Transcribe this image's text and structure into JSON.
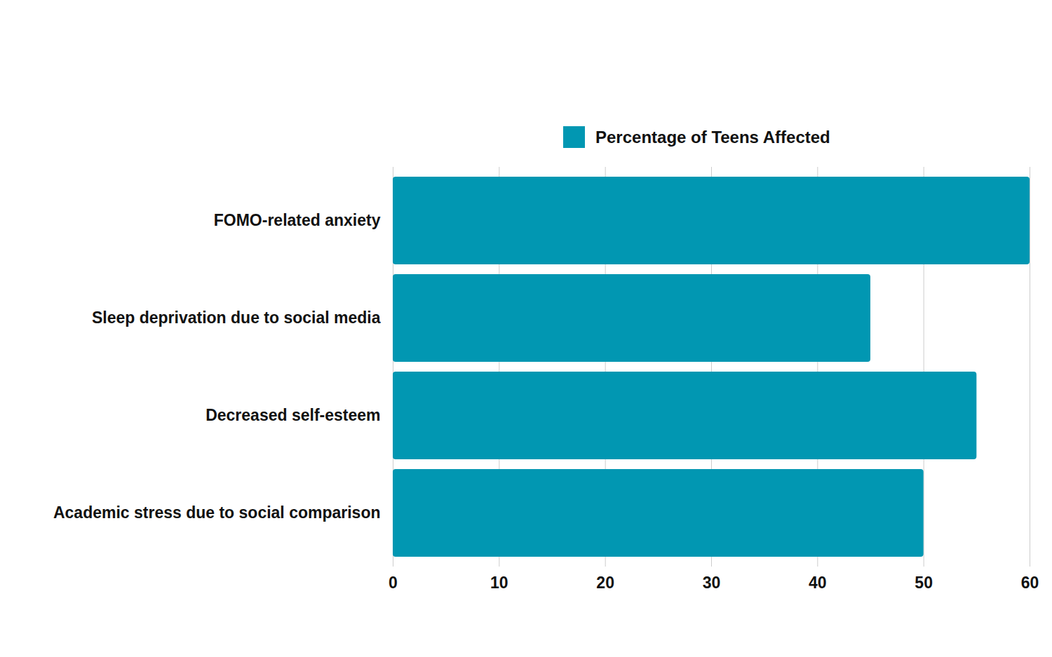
{
  "chart_data": {
    "type": "bar",
    "orientation": "horizontal",
    "categories": [
      "FOMO-related anxiety",
      "Sleep deprivation due to social media",
      "Decreased self-esteem",
      "Academic stress due to social comparison"
    ],
    "series": [
      {
        "name": "Percentage of Teens Affected",
        "color": "#0197b2",
        "values": [
          60,
          45,
          55,
          50
        ]
      }
    ],
    "xlim": [
      0,
      60
    ],
    "xticks": [
      0,
      10,
      20,
      30,
      40,
      50,
      60
    ],
    "grid": true,
    "legend": "top"
  }
}
